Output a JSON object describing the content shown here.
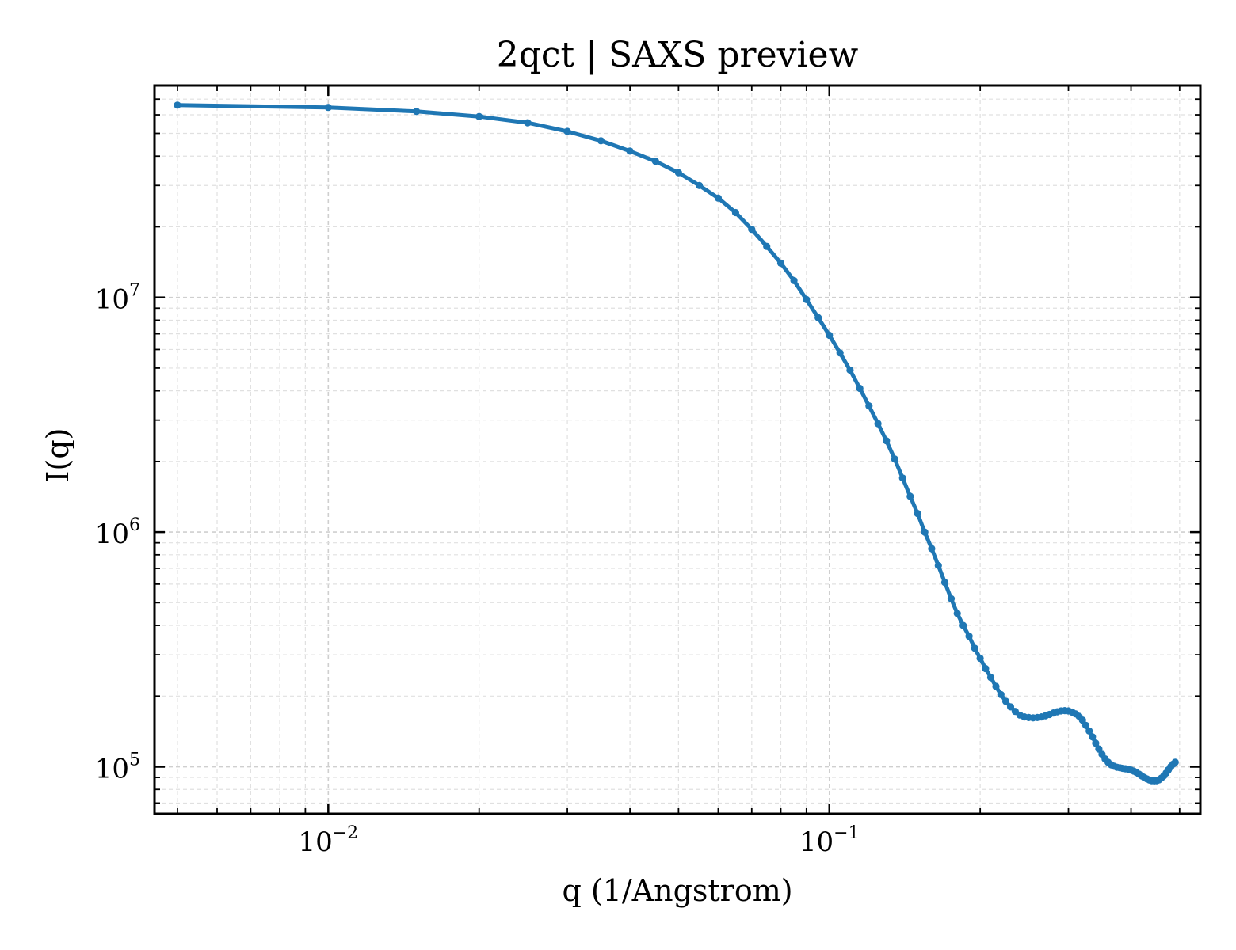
{
  "chart_data": {
    "type": "line",
    "title": "2qct | SAXS preview",
    "xlabel": "q (1/Angstrom)",
    "ylabel": "I(q)",
    "x_scale": "log",
    "y_scale": "log",
    "xlim": [
      0.0045,
      0.55
    ],
    "ylim": [
      63000,
      80000000
    ],
    "grid": true,
    "marker": "circle",
    "color": "#1f77b4",
    "x_ticks": [
      {
        "value": 0.01,
        "base": "10",
        "exp": "−2"
      },
      {
        "value": 0.1,
        "base": "10",
        "exp": "−1"
      }
    ],
    "y_ticks": [
      {
        "value": 100000,
        "base": "10",
        "exp": "5"
      },
      {
        "value": 1000000,
        "base": "10",
        "exp": "6"
      },
      {
        "value": 10000000,
        "base": "10",
        "exp": "7"
      }
    ],
    "points": [
      [
        0.005,
        66000000
      ],
      [
        0.01,
        64500000
      ],
      [
        0.015,
        62000000
      ],
      [
        0.02,
        59000000
      ],
      [
        0.025,
        55500000
      ],
      [
        0.03,
        51000000
      ],
      [
        0.035,
        46500000
      ],
      [
        0.04,
        42000000
      ],
      [
        0.045,
        38000000
      ],
      [
        0.05,
        34000000
      ],
      [
        0.055,
        30000000
      ],
      [
        0.06,
        26500000
      ],
      [
        0.065,
        23000000
      ],
      [
        0.07,
        19500000
      ],
      [
        0.075,
        16500000
      ],
      [
        0.08,
        14000000
      ],
      [
        0.085,
        11800000
      ],
      [
        0.09,
        9800000
      ],
      [
        0.095,
        8200000
      ],
      [
        0.1,
        6900000
      ],
      [
        0.105,
        5800000
      ],
      [
        0.11,
        4900000
      ],
      [
        0.115,
        4100000
      ],
      [
        0.12,
        3450000
      ],
      [
        0.125,
        2900000
      ],
      [
        0.13,
        2450000
      ],
      [
        0.135,
        2050000
      ],
      [
        0.14,
        1700000
      ],
      [
        0.145,
        1420000
      ],
      [
        0.15,
        1200000
      ],
      [
        0.155,
        1000000
      ],
      [
        0.16,
        850000
      ],
      [
        0.165,
        720000
      ],
      [
        0.17,
        610000
      ],
      [
        0.175,
        520000
      ],
      [
        0.18,
        450000
      ],
      [
        0.185,
        400000
      ],
      [
        0.19,
        360000
      ],
      [
        0.195,
        320000
      ],
      [
        0.2,
        290000
      ],
      [
        0.205,
        262000
      ],
      [
        0.21,
        240000
      ],
      [
        0.215,
        220000
      ],
      [
        0.22,
        203000
      ],
      [
        0.225,
        190000
      ],
      [
        0.23,
        180000
      ],
      [
        0.235,
        172000
      ],
      [
        0.24,
        166000
      ],
      [
        0.245,
        163000
      ],
      [
        0.25,
        162000
      ],
      [
        0.255,
        161500
      ],
      [
        0.26,
        162000
      ],
      [
        0.265,
        163000
      ],
      [
        0.27,
        165000
      ],
      [
        0.275,
        167000
      ],
      [
        0.28,
        169500
      ],
      [
        0.285,
        171500
      ],
      [
        0.29,
        173000
      ],
      [
        0.295,
        173500
      ],
      [
        0.3,
        173000
      ],
      [
        0.305,
        171000
      ],
      [
        0.31,
        168000
      ],
      [
        0.315,
        164000
      ],
      [
        0.32,
        158000
      ],
      [
        0.325,
        150000
      ],
      [
        0.33,
        142000
      ],
      [
        0.335,
        134000
      ],
      [
        0.34,
        126000
      ],
      [
        0.345,
        119000
      ],
      [
        0.35,
        113000
      ],
      [
        0.355,
        108000
      ],
      [
        0.36,
        104500
      ],
      [
        0.365,
        102000
      ],
      [
        0.37,
        100500
      ],
      [
        0.375,
        99500
      ],
      [
        0.38,
        99000
      ],
      [
        0.385,
        98500
      ],
      [
        0.39,
        98000
      ],
      [
        0.395,
        97500
      ],
      [
        0.4,
        96800
      ],
      [
        0.405,
        95800
      ],
      [
        0.41,
        94500
      ],
      [
        0.415,
        93000
      ],
      [
        0.42,
        91500
      ],
      [
        0.425,
        90000
      ],
      [
        0.43,
        88800
      ],
      [
        0.435,
        87800
      ],
      [
        0.44,
        87200
      ],
      [
        0.445,
        87000
      ],
      [
        0.45,
        87200
      ],
      [
        0.455,
        88000
      ],
      [
        0.46,
        89500
      ],
      [
        0.465,
        91500
      ],
      [
        0.47,
        94000
      ],
      [
        0.475,
        97000
      ],
      [
        0.48,
        100000
      ],
      [
        0.485,
        102500
      ],
      [
        0.49,
        104500
      ]
    ]
  }
}
